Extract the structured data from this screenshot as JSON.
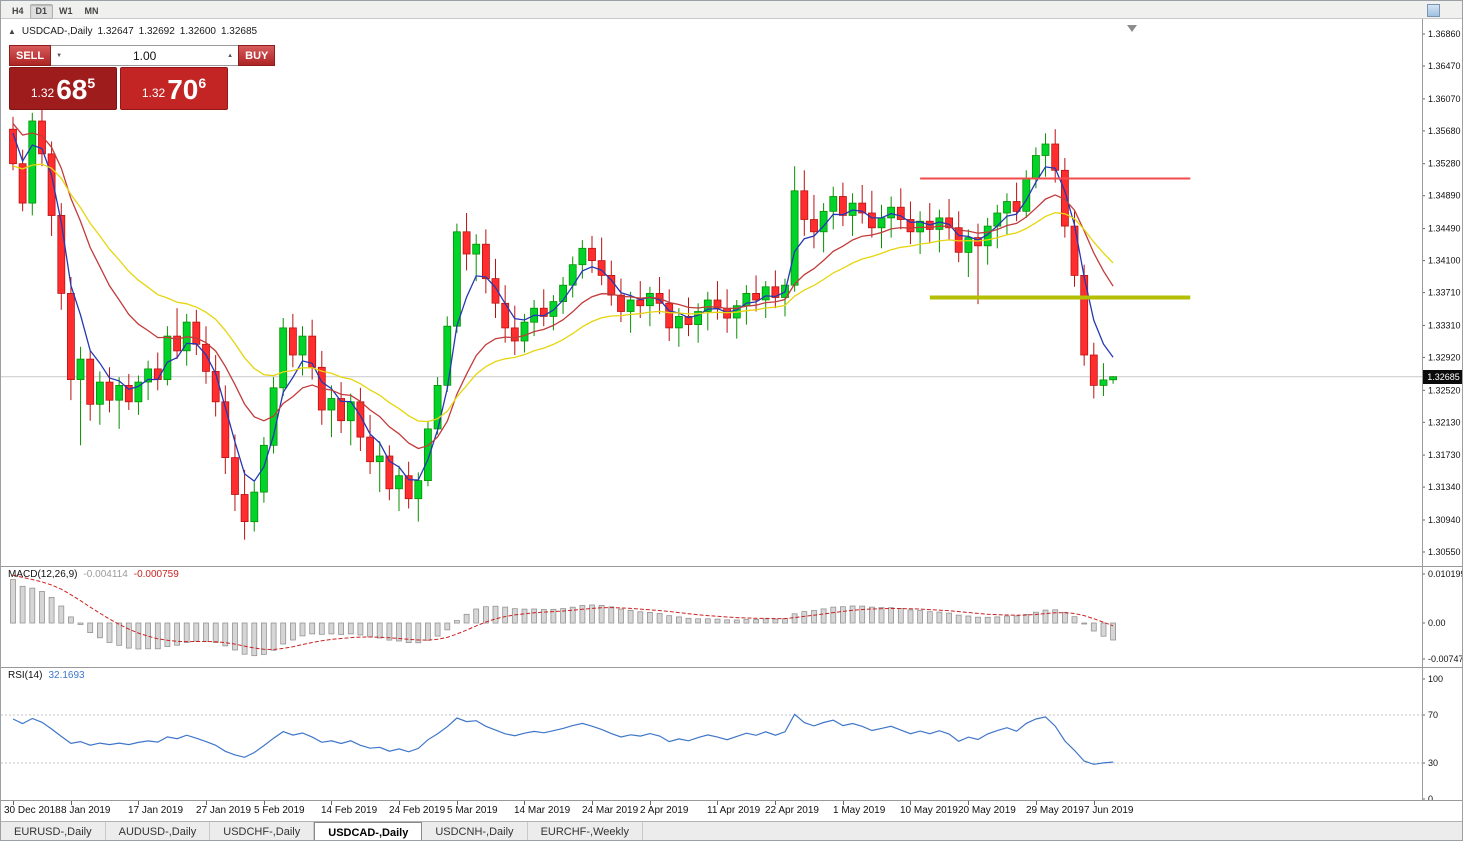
{
  "toolbar": {
    "timeframes": [
      "H4",
      "D1",
      "W1",
      "MN"
    ],
    "active": "D1"
  },
  "icons": {
    "collapse": "▲",
    "volume_down": "▼",
    "volume_up": "▲"
  },
  "chart_header": {
    "symbol": "USDCAD-,Daily",
    "open": "1.32647",
    "high": "1.32692",
    "low": "1.32600",
    "close": "1.32685"
  },
  "trade_panel": {
    "sell_label": "SELL",
    "buy_label": "BUY",
    "volume": "1.00",
    "sell_price": {
      "prefix": "1.32",
      "big": "68",
      "sup": "5"
    },
    "buy_price": {
      "prefix": "1.32",
      "big": "70",
      "sup": "6"
    }
  },
  "price_axis": {
    "labels": [
      "1.36860",
      "1.36470",
      "1.36070",
      "1.35680",
      "1.35280",
      "1.34890",
      "1.34490",
      "1.34100",
      "1.33710",
      "1.33310",
      "1.32920",
      "1.32520",
      "1.32130",
      "1.31730",
      "1.31340",
      "1.30940",
      "1.30550"
    ],
    "top_price": 1.3686,
    "bottom_price": 1.3055,
    "current_price": 1.32685,
    "current_tag": "1.32685"
  },
  "chart_data": {
    "type": "candlestick",
    "symbol": "USDCAD-",
    "timeframe": "Daily",
    "title": "USDCAD-,Daily",
    "up_color": "#00d42a",
    "down_color": "#ff2d2d",
    "x_ticks": [
      {
        "label": "30 Dec 2018",
        "index": 0
      },
      {
        "label": "8 Jan 2019",
        "index": 6
      },
      {
        "label": "17 Jan 2019",
        "index": 13
      },
      {
        "label": "27 Jan 2019",
        "index": 20
      },
      {
        "label": "5 Feb 2019",
        "index": 26
      },
      {
        "label": "14 Feb 2019",
        "index": 33
      },
      {
        "label": "24 Feb 2019",
        "index": 40
      },
      {
        "label": "5 Mar 2019",
        "index": 46
      },
      {
        "label": "14 Mar 2019",
        "index": 53
      },
      {
        "label": "24 Mar 2019",
        "index": 60
      },
      {
        "label": "2 Apr 2019",
        "index": 66
      },
      {
        "label": "11 Apr 2019",
        "index": 73
      },
      {
        "label": "22 Apr 2019",
        "index": 79
      },
      {
        "label": "1 May 2019",
        "index": 86
      },
      {
        "label": "10 May 2019",
        "index": 93
      },
      {
        "label": "20 May 2019",
        "index": 99
      },
      {
        "label": "29 May 2019",
        "index": 106
      },
      {
        "label": "7 Jun 2019",
        "index": 112
      }
    ],
    "candles": [
      [
        1.357,
        1.3585,
        1.352,
        1.3528
      ],
      [
        1.3528,
        1.3545,
        1.347,
        1.348
      ],
      [
        1.348,
        1.359,
        1.3465,
        1.358
      ],
      [
        1.358,
        1.3595,
        1.3525,
        1.354
      ],
      [
        1.354,
        1.3555,
        1.344,
        1.3465
      ],
      [
        1.3465,
        1.348,
        1.335,
        1.337
      ],
      [
        1.337,
        1.339,
        1.324,
        1.3265
      ],
      [
        1.3265,
        1.3305,
        1.3185,
        1.329
      ],
      [
        1.329,
        1.33,
        1.3215,
        1.3235
      ],
      [
        1.3235,
        1.3275,
        1.321,
        1.3262
      ],
      [
        1.3262,
        1.328,
        1.3225,
        1.324
      ],
      [
        1.324,
        1.3268,
        1.3205,
        1.3258
      ],
      [
        1.3258,
        1.3272,
        1.3228,
        1.3238
      ],
      [
        1.3238,
        1.327,
        1.3222,
        1.3262
      ],
      [
        1.3262,
        1.3288,
        1.324,
        1.3278
      ],
      [
        1.3278,
        1.3298,
        1.3252,
        1.3265
      ],
      [
        1.3265,
        1.333,
        1.3258,
        1.3318
      ],
      [
        1.3318,
        1.3352,
        1.329,
        1.33
      ],
      [
        1.33,
        1.3345,
        1.3282,
        1.3335
      ],
      [
        1.3335,
        1.335,
        1.3295,
        1.3308
      ],
      [
        1.3308,
        1.333,
        1.326,
        1.3275
      ],
      [
        1.3275,
        1.3295,
        1.322,
        1.3238
      ],
      [
        1.3238,
        1.3258,
        1.315,
        1.317
      ],
      [
        1.317,
        1.3198,
        1.3105,
        1.3125
      ],
      [
        1.3125,
        1.3155,
        1.307,
        1.3092
      ],
      [
        1.3092,
        1.314,
        1.308,
        1.3128
      ],
      [
        1.3128,
        1.3195,
        1.3115,
        1.3185
      ],
      [
        1.3185,
        1.3268,
        1.3175,
        1.3255
      ],
      [
        1.3255,
        1.334,
        1.3245,
        1.3328
      ],
      [
        1.3328,
        1.3345,
        1.328,
        1.3295
      ],
      [
        1.3295,
        1.333,
        1.327,
        1.3318
      ],
      [
        1.3318,
        1.3338,
        1.3265,
        1.328
      ],
      [
        1.328,
        1.33,
        1.321,
        1.3228
      ],
      [
        1.3228,
        1.3258,
        1.3195,
        1.3242
      ],
      [
        1.3242,
        1.3262,
        1.32,
        1.3215
      ],
      [
        1.3215,
        1.3248,
        1.3185,
        1.3238
      ],
      [
        1.3238,
        1.3255,
        1.3178,
        1.3195
      ],
      [
        1.3195,
        1.3222,
        1.315,
        1.3165
      ],
      [
        1.3165,
        1.319,
        1.3128,
        1.3172
      ],
      [
        1.3172,
        1.3185,
        1.3118,
        1.3132
      ],
      [
        1.3132,
        1.316,
        1.3105,
        1.3148
      ],
      [
        1.3148,
        1.3165,
        1.3108,
        1.312
      ],
      [
        1.312,
        1.3152,
        1.3092,
        1.3142
      ],
      [
        1.3142,
        1.3215,
        1.3135,
        1.3205
      ],
      [
        1.3205,
        1.3268,
        1.3198,
        1.3258
      ],
      [
        1.3258,
        1.3342,
        1.325,
        1.333
      ],
      [
        1.333,
        1.3455,
        1.3322,
        1.3445
      ],
      [
        1.3445,
        1.3468,
        1.3398,
        1.3418
      ],
      [
        1.3418,
        1.3442,
        1.3385,
        1.343
      ],
      [
        1.343,
        1.3448,
        1.337,
        1.3388
      ],
      [
        1.3388,
        1.3412,
        1.334,
        1.3358
      ],
      [
        1.3358,
        1.338,
        1.331,
        1.3328
      ],
      [
        1.3328,
        1.3355,
        1.3295,
        1.3312
      ],
      [
        1.3312,
        1.3345,
        1.3298,
        1.3335
      ],
      [
        1.3335,
        1.3362,
        1.3318,
        1.3352
      ],
      [
        1.3352,
        1.3375,
        1.333,
        1.3342
      ],
      [
        1.3342,
        1.3368,
        1.3325,
        1.336
      ],
      [
        1.336,
        1.339,
        1.3345,
        1.338
      ],
      [
        1.338,
        1.3415,
        1.3365,
        1.3405
      ],
      [
        1.3405,
        1.3435,
        1.3388,
        1.3425
      ],
      [
        1.3425,
        1.344,
        1.3395,
        1.341
      ],
      [
        1.341,
        1.3438,
        1.338,
        1.3392
      ],
      [
        1.3392,
        1.341,
        1.3355,
        1.3368
      ],
      [
        1.3368,
        1.3388,
        1.3335,
        1.3348
      ],
      [
        1.3348,
        1.3372,
        1.3322,
        1.3362
      ],
      [
        1.3362,
        1.3385,
        1.334,
        1.3355
      ],
      [
        1.3355,
        1.3378,
        1.333,
        1.337
      ],
      [
        1.337,
        1.339,
        1.3345,
        1.3358
      ],
      [
        1.3358,
        1.3375,
        1.3312,
        1.3328
      ],
      [
        1.3328,
        1.3352,
        1.3305,
        1.3342
      ],
      [
        1.3342,
        1.3365,
        1.3318,
        1.3332
      ],
      [
        1.3332,
        1.3358,
        1.331,
        1.3348
      ],
      [
        1.3348,
        1.3372,
        1.3325,
        1.3362
      ],
      [
        1.3362,
        1.3385,
        1.3338,
        1.3352
      ],
      [
        1.3352,
        1.3375,
        1.3322,
        1.334
      ],
      [
        1.334,
        1.3362,
        1.3315,
        1.3355
      ],
      [
        1.3355,
        1.338,
        1.3332,
        1.337
      ],
      [
        1.337,
        1.3392,
        1.3348,
        1.3362
      ],
      [
        1.3362,
        1.3385,
        1.334,
        1.3378
      ],
      [
        1.3378,
        1.3398,
        1.3352,
        1.3365
      ],
      [
        1.3365,
        1.3388,
        1.3342,
        1.338
      ],
      [
        1.338,
        1.3525,
        1.3372,
        1.3495
      ],
      [
        1.3495,
        1.352,
        1.344,
        1.346
      ],
      [
        1.346,
        1.349,
        1.3425,
        1.3445
      ],
      [
        1.3445,
        1.348,
        1.342,
        1.347
      ],
      [
        1.347,
        1.35,
        1.3448,
        1.3488
      ],
      [
        1.3488,
        1.3505,
        1.3452,
        1.3465
      ],
      [
        1.3465,
        1.3492,
        1.344,
        1.348
      ],
      [
        1.348,
        1.3502,
        1.3455,
        1.3468
      ],
      [
        1.3468,
        1.3495,
        1.3438,
        1.345
      ],
      [
        1.345,
        1.3478,
        1.3425,
        1.3462
      ],
      [
        1.3462,
        1.3488,
        1.3438,
        1.3475
      ],
      [
        1.3475,
        1.3498,
        1.3448,
        1.346
      ],
      [
        1.346,
        1.3482,
        1.343,
        1.3445
      ],
      [
        1.3445,
        1.347,
        1.3418,
        1.3458
      ],
      [
        1.3458,
        1.348,
        1.3432,
        1.3448
      ],
      [
        1.3448,
        1.3472,
        1.342,
        1.3462
      ],
      [
        1.3462,
        1.3485,
        1.3435,
        1.345
      ],
      [
        1.345,
        1.347,
        1.3408,
        1.342
      ],
      [
        1.342,
        1.3448,
        1.339,
        1.3438
      ],
      [
        1.3438,
        1.3455,
        1.3357,
        1.3428
      ],
      [
        1.3428,
        1.3462,
        1.3405,
        1.3452
      ],
      [
        1.3452,
        1.3478,
        1.3425,
        1.3468
      ],
      [
        1.3468,
        1.3492,
        1.3442,
        1.3482
      ],
      [
        1.3482,
        1.3505,
        1.3458,
        1.347
      ],
      [
        1.347,
        1.352,
        1.3462,
        1.351
      ],
      [
        1.351,
        1.3548,
        1.3498,
        1.3538
      ],
      [
        1.3538,
        1.3565,
        1.3512,
        1.3552
      ],
      [
        1.3552,
        1.357,
        1.3505,
        1.352
      ],
      [
        1.352,
        1.3535,
        1.3438,
        1.3452
      ],
      [
        1.3452,
        1.347,
        1.3378,
        1.3392
      ],
      [
        1.3392,
        1.3405,
        1.3282,
        1.3295
      ],
      [
        1.3295,
        1.331,
        1.3242,
        1.3258
      ],
      [
        1.3258,
        1.3285,
        1.3245,
        1.32647
      ],
      [
        1.32647,
        1.32692,
        1.326,
        1.32685
      ]
    ],
    "moving_averages": [
      {
        "name": "ma-fast",
        "period": 4,
        "seed": 1.359,
        "color": "#2438b4"
      },
      {
        "name": "ma-medium",
        "period": 13,
        "seed": 1.3585,
        "color": "#c23b3b"
      },
      {
        "name": "ma-slow",
        "period": 24,
        "seed": 1.3525,
        "color": "#e6d50e"
      }
    ],
    "hlines": [
      {
        "name": "resistance-line",
        "price": 1.351,
        "color": "#f34b4b",
        "width": 2,
        "from_index": 94,
        "to_index": 122
      },
      {
        "name": "support-line",
        "price": 1.3365,
        "color": "#b3bf00",
        "width": 4,
        "from_index": 95,
        "to_index": 122
      }
    ],
    "indicators": {
      "macd": {
        "title": "MACD(12,26,9)",
        "values": [
          "-0.004114",
          "-0.000759"
        ],
        "params": [
          12,
          26,
          9
        ],
        "axis_labels": [
          "0.010199",
          "0.00",
          "-0.007476"
        ],
        "axis_values": [
          0.010199,
          0,
          -0.007476
        ],
        "range": [
          -0.007476,
          0.010199
        ],
        "histogram_color": "#d6d6d6",
        "histogram_stroke": "#8f8f8f",
        "signal_color": "#cc2222"
      },
      "rsi": {
        "title": "RSI(14)",
        "value": "32.1693",
        "period": 14,
        "axis_labels": [
          "100",
          "70",
          "30",
          "0"
        ],
        "axis_values": [
          100,
          70,
          30,
          0
        ],
        "levels": [
          70,
          30
        ],
        "line_color": "#3f76c9",
        "level_color": "#c6c6c6"
      }
    }
  },
  "tabs": [
    {
      "label": "EURUSD-,Daily",
      "active": false
    },
    {
      "label": "AUDUSD-,Daily",
      "active": false
    },
    {
      "label": "USDCHF-,Daily",
      "active": false
    },
    {
      "label": "USDCAD-,Daily",
      "active": true
    },
    {
      "label": "USDCNH-,Daily",
      "active": false
    },
    {
      "label": "EURCHF-,Weekly",
      "active": false
    }
  ]
}
